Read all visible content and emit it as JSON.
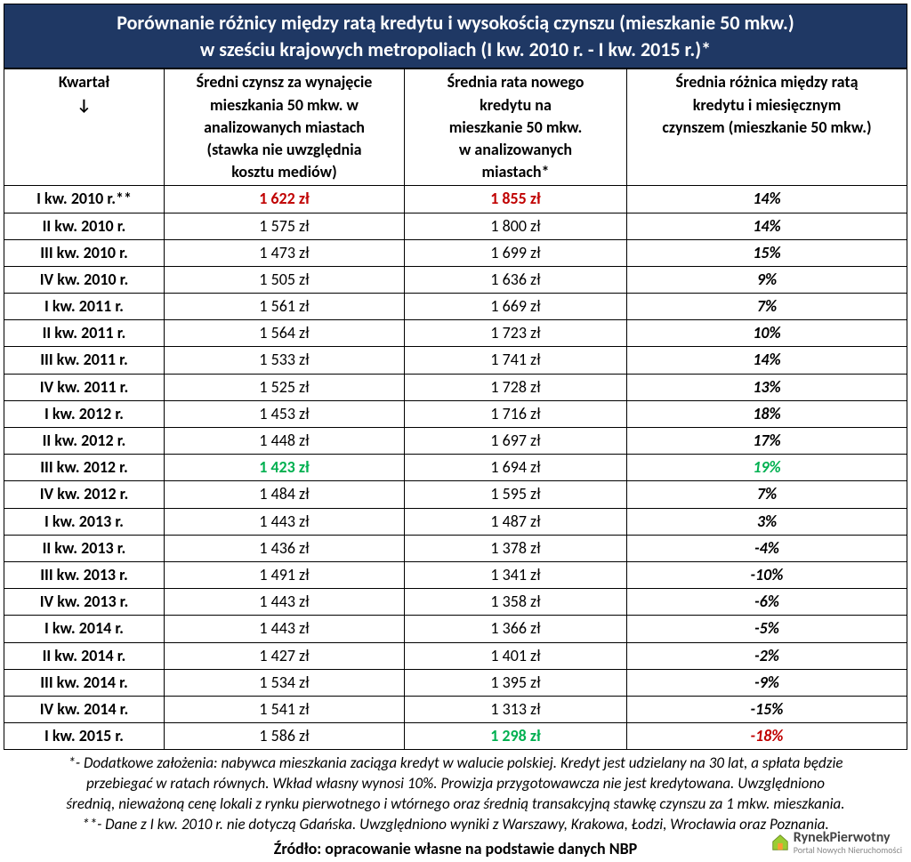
{
  "colors": {
    "header_bg": "#1f3864",
    "header_text": "#ffffff",
    "red": "#c00000",
    "green": "#00b050",
    "black": "#000000"
  },
  "title": {
    "line1": "Porównanie różnicy między ratą kredytu i wysokością czynszu (mieszkanie 50 mkw.)",
    "line2": "w sześciu krajowych metropoliach (I kw. 2010 r. - I kw. 2015 r.)*"
  },
  "columns": {
    "quarter_l1": "Kwartał",
    "quarter_l2": "↓",
    "rent_l1": "Średni czynsz za wynajęcie",
    "rent_l2": "mieszkania 50 mkw. w",
    "rent_l3": "analizowanych miastach",
    "rent_l4": "(stawka nie uwzględnia",
    "rent_l5": "kosztu mediów)",
    "loan_l1": "Średnia rata nowego",
    "loan_l2": "kredytu na",
    "loan_l3": "mieszkanie 50 mkw.",
    "loan_l4": "w analizowanych",
    "loan_l5": "miastach*",
    "diff_l1": "Średnia różnica między ratą",
    "diff_l2": "kredytu i miesięcznym",
    "diff_l3": "czynszem (mieszkanie 50 mkw.)"
  },
  "rows": [
    {
      "q": "I kw. 2010 r.**",
      "rent": "1 622 zł",
      "rent_c": "#c00000",
      "loan": "1 855 zł",
      "loan_c": "#c00000",
      "diff": "14%",
      "diff_c": "#000000"
    },
    {
      "q": "II kw. 2010 r.",
      "rent": "1 575 zł",
      "rent_c": "#000000",
      "loan": "1 800 zł",
      "loan_c": "#000000",
      "diff": "14%",
      "diff_c": "#000000"
    },
    {
      "q": "III kw. 2010 r.",
      "rent": "1 473 zł",
      "rent_c": "#000000",
      "loan": "1 699 zł",
      "loan_c": "#000000",
      "diff": "15%",
      "diff_c": "#000000"
    },
    {
      "q": "IV kw. 2010 r.",
      "rent": "1 505 zł",
      "rent_c": "#000000",
      "loan": "1 636 zł",
      "loan_c": "#000000",
      "diff": "9%",
      "diff_c": "#000000"
    },
    {
      "q": "I kw. 2011 r.",
      "rent": "1 561 zł",
      "rent_c": "#000000",
      "loan": "1 669 zł",
      "loan_c": "#000000",
      "diff": "7%",
      "diff_c": "#000000"
    },
    {
      "q": "II kw. 2011 r.",
      "rent": "1 564 zł",
      "rent_c": "#000000",
      "loan": "1 723 zł",
      "loan_c": "#000000",
      "diff": "10%",
      "diff_c": "#000000"
    },
    {
      "q": "III kw. 2011 r.",
      "rent": "1 533 zł",
      "rent_c": "#000000",
      "loan": "1 741 zł",
      "loan_c": "#000000",
      "diff": "14%",
      "diff_c": "#000000"
    },
    {
      "q": "IV kw. 2011 r.",
      "rent": "1 525 zł",
      "rent_c": "#000000",
      "loan": "1 728 zł",
      "loan_c": "#000000",
      "diff": "13%",
      "diff_c": "#000000"
    },
    {
      "q": "I kw. 2012 r.",
      "rent": "1 453 zł",
      "rent_c": "#000000",
      "loan": "1 716 zł",
      "loan_c": "#000000",
      "diff": "18%",
      "diff_c": "#000000"
    },
    {
      "q": "II kw. 2012 r.",
      "rent": "1 448 zł",
      "rent_c": "#000000",
      "loan": "1 697 zł",
      "loan_c": "#000000",
      "diff": "17%",
      "diff_c": "#000000"
    },
    {
      "q": "III kw. 2012 r.",
      "rent": "1 423 zł",
      "rent_c": "#00b050",
      "loan": "1 694 zł",
      "loan_c": "#000000",
      "diff": "19%",
      "diff_c": "#00b050"
    },
    {
      "q": "IV kw. 2012 r.",
      "rent": "1 484 zł",
      "rent_c": "#000000",
      "loan": "1 595 zł",
      "loan_c": "#000000",
      "diff": "7%",
      "diff_c": "#000000"
    },
    {
      "q": "I kw. 2013 r.",
      "rent": "1 443 zł",
      "rent_c": "#000000",
      "loan": "1 487 zł",
      "loan_c": "#000000",
      "diff": "3%",
      "diff_c": "#000000"
    },
    {
      "q": "II kw. 2013 r.",
      "rent": "1 436 zł",
      "rent_c": "#000000",
      "loan": "1 378 zł",
      "loan_c": "#000000",
      "diff": "-4%",
      "diff_c": "#000000"
    },
    {
      "q": "III kw. 2013 r.",
      "rent": "1 491 zł",
      "rent_c": "#000000",
      "loan": "1 341 zł",
      "loan_c": "#000000",
      "diff": "-10%",
      "diff_c": "#000000"
    },
    {
      "q": "IV kw. 2013 r.",
      "rent": "1 443 zł",
      "rent_c": "#000000",
      "loan": "1 358 zł",
      "loan_c": "#000000",
      "diff": "-6%",
      "diff_c": "#000000"
    },
    {
      "q": "I kw. 2014 r.",
      "rent": "1 443 zł",
      "rent_c": "#000000",
      "loan": "1 366 zł",
      "loan_c": "#000000",
      "diff": "-5%",
      "diff_c": "#000000"
    },
    {
      "q": "II kw. 2014 r.",
      "rent": "1 427 zł",
      "rent_c": "#000000",
      "loan": "1 401 zł",
      "loan_c": "#000000",
      "diff": "-2%",
      "diff_c": "#000000"
    },
    {
      "q": "III kw. 2014 r.",
      "rent": "1 534 zł",
      "rent_c": "#000000",
      "loan": "1 395 zł",
      "loan_c": "#000000",
      "diff": "-9%",
      "diff_c": "#000000"
    },
    {
      "q": "IV kw. 2014 r.",
      "rent": "1 541 zł",
      "rent_c": "#000000",
      "loan": "1 313 zł",
      "loan_c": "#000000",
      "diff": "-15%",
      "diff_c": "#000000"
    },
    {
      "q": "I kw. 2015 r.",
      "rent": "1 586 zł",
      "rent_c": "#000000",
      "loan": "1 298 zł",
      "loan_c": "#00b050",
      "diff": "-18%",
      "diff_c": "#c00000"
    }
  ],
  "footnotes": {
    "l1": "*- Dodatkowe założenia: nabywca mieszkania zaciąga kredyt w walucie polskiej. Kredyt jest udzielany na 30 lat, a spłata będzie",
    "l2": "przebiegać w ratach równych. Wkład własny wynosi 10%. Prowizja przygotowawcza nie jest kredytowana. Uwzględniono",
    "l3": "średnią, nieważoną cenę lokali z rynku pierwotnego i wtórnego oraz średnią transakcyjną stawkę czynszu za 1 mkw. mieszkania.",
    "l4": "**- Dane z I kw. 2010 r. nie dotyczą Gdańska. Uwzględniono wyniki z Warszawy, Krakowa, Łodzi, Wrocławia oraz Poznania."
  },
  "source": "Źródło: opracowanie własne na podstawie danych NBP",
  "logo": {
    "brand": "RynekPierwotny",
    "tagline": "Portal Nowych Nieruchomości"
  }
}
